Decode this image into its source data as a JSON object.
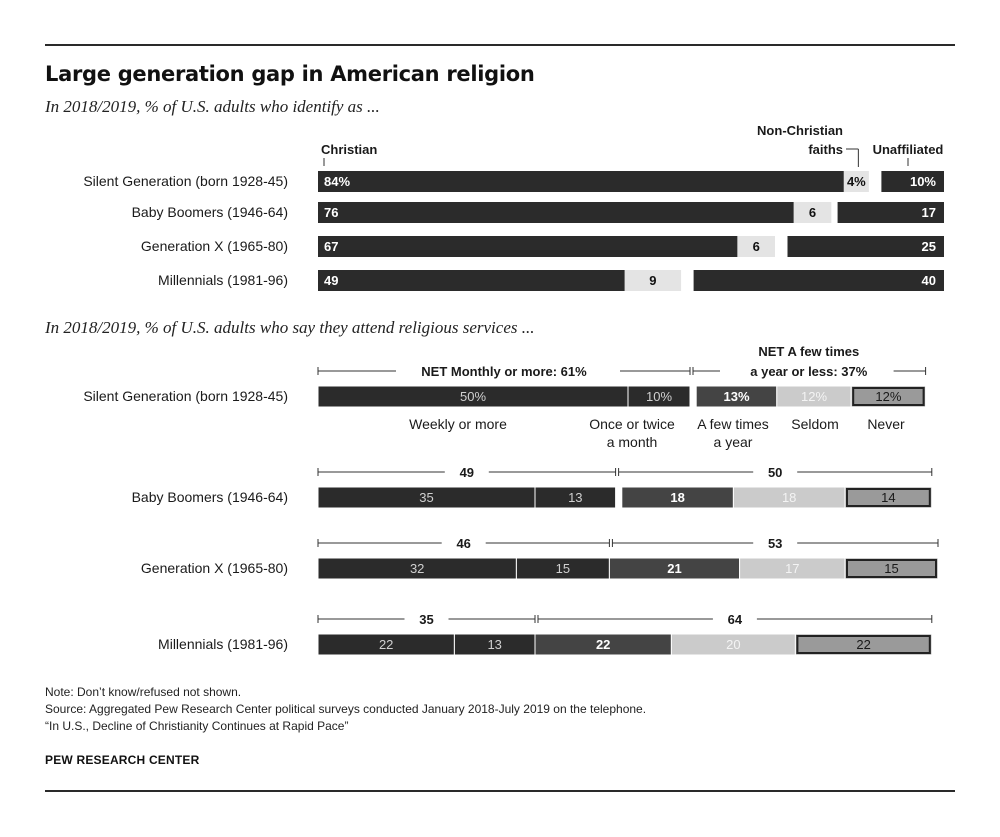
{
  "title": "Large generation gap in American religion",
  "subtitle_identity": "In 2018/2019, % of U.S. adults who identify as ...",
  "subtitle_attendance": "In 2018/2019, % of U.S. adults who say they attend religious services ...",
  "notes": [
    "Note: Don’t know/refused not shown.",
    "Source: Aggregated Pew Research Center political surveys conducted January 2018-July 2019 on the telephone.",
    "“In U.S., Decline of Christianity Continues at Rapid Pace”"
  ],
  "source_org": "PEW RESEARCH CENTER",
  "colors": {
    "christian": "#2b2b2b",
    "non_christian": "#e4e4e4",
    "unaffiliated": "#2b2b2b",
    "weekly": "#2b2b2b",
    "monthly": "#2b2b2b",
    "few_times": "#444444",
    "seldom": "#cbcbcb",
    "never": "#9a9a9a"
  },
  "chart_data": [
    {
      "type": "bar",
      "stacked": true,
      "orientation": "horizontal",
      "title": "In 2018/2019, % of U.S. adults who identify as ...",
      "categories": [
        "Silent Generation (born 1928-45)",
        "Baby Boomers (1946-64)",
        "Generation X (1965-80)",
        "Millennials (1981-96)"
      ],
      "series": [
        {
          "name": "Christian",
          "values": [
            84,
            76,
            67,
            49
          ]
        },
        {
          "name": "Non-Christian faiths",
          "values": [
            4,
            6,
            6,
            9
          ]
        },
        {
          "name": "Unaffiliated",
          "values": [
            10,
            17,
            25,
            40
          ]
        }
      ],
      "data_labels": [
        [
          "84%",
          "4%",
          "10%"
        ],
        [
          "76",
          "6",
          "17"
        ],
        [
          "67",
          "6",
          "25"
        ],
        [
          "49",
          "9",
          "40"
        ]
      ],
      "series_label_lines": {
        "Christian": [
          "Christian"
        ],
        "Non-Christian faiths": [
          "Non-Christian",
          "faiths"
        ],
        "Unaffiliated": [
          "Unaffiliated"
        ]
      }
    },
    {
      "type": "bar",
      "stacked": true,
      "orientation": "horizontal",
      "title": "In 2018/2019, % of U.S. adults who say they attend religious services ...",
      "categories": [
        "Silent Generation (born 1928-45)",
        "Baby Boomers (1946-64)",
        "Generation X (1965-80)",
        "Millennials (1981-96)"
      ],
      "series": [
        {
          "name": "Weekly or more",
          "values": [
            50,
            35,
            32,
            22
          ]
        },
        {
          "name": "Once or twice a month",
          "values": [
            10,
            13,
            15,
            13
          ]
        },
        {
          "name": "A few times a year",
          "values": [
            13,
            18,
            21,
            22
          ]
        },
        {
          "name": "Seldom",
          "values": [
            12,
            18,
            17,
            20
          ]
        },
        {
          "name": "Never",
          "values": [
            12,
            14,
            15,
            22
          ]
        }
      ],
      "data_labels": [
        [
          "50%",
          "10%",
          "13%",
          "12%",
          "12%"
        ],
        [
          "35",
          "13",
          "18",
          "18",
          "14"
        ],
        [
          "32",
          "15",
          "21",
          "17",
          "15"
        ],
        [
          "22",
          "13",
          "22",
          "20",
          "22"
        ]
      ],
      "series_label_lines": [
        [
          "Weekly or more"
        ],
        [
          "Once or twice",
          "a month"
        ],
        [
          "A few times",
          "a year"
        ],
        [
          "Seldom"
        ],
        [
          "Never"
        ]
      ],
      "net_groups": [
        {
          "name": "NET Monthly or more",
          "values": [
            61,
            49,
            46,
            35
          ],
          "labels": [
            "NET Monthly or more: 61%",
            "49",
            "46",
            "35"
          ]
        },
        {
          "name": "NET A few times a year or less",
          "values": [
            37,
            50,
            53,
            64
          ],
          "labels": [
            "NET A few times a year or less: 37%",
            "50",
            "53",
            "64"
          ],
          "label_lines_first": [
            "NET A few times",
            "a year or less: 37%"
          ]
        }
      ]
    }
  ]
}
